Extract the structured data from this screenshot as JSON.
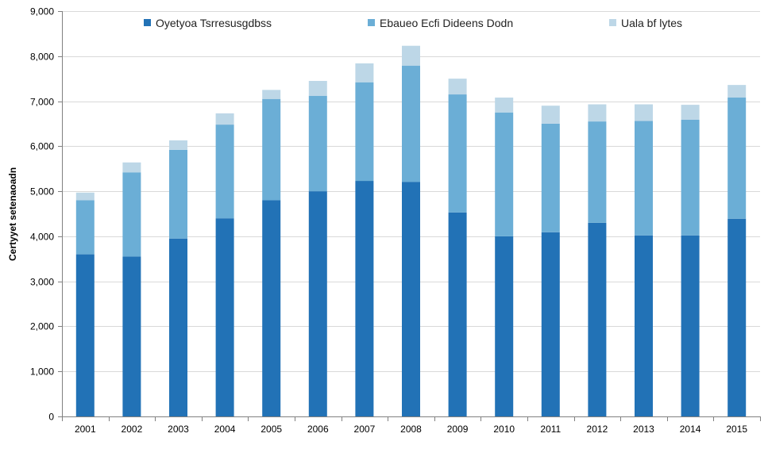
{
  "chart_data": {
    "type": "bar",
    "stacked": true,
    "title": "",
    "xlabel": "",
    "ylabel": "Certyyet setenaoadn",
    "ylim": [
      0,
      9000
    ],
    "yticks": [
      0,
      1000,
      2000,
      3000,
      4000,
      5000,
      6000,
      7000,
      8000,
      9000
    ],
    "ytick_labels": [
      "0",
      "1,000",
      "2,000",
      "3,000",
      "4,000",
      "5,000",
      "6,000",
      "7,000",
      "8,000",
      "9,000"
    ],
    "grid": true,
    "legend_position": "top",
    "categories": [
      "2001",
      "2002",
      "2003",
      "2004",
      "2005",
      "2006",
      "2007",
      "2008",
      "2009",
      "2010",
      "2011",
      "2012",
      "2013",
      "2014",
      "2015"
    ],
    "series": [
      {
        "name": "Oyetyoa Tsrresusgdbss",
        "color": "#2272b6",
        "values": [
          3600,
          3550,
          3950,
          4400,
          4800,
          5000,
          5230,
          5210,
          4530,
          4000,
          4090,
          4300,
          4020,
          4020,
          4390
        ]
      },
      {
        "name": "Ebaueo Ecfi Dideens Dodn",
        "color": "#6baed6",
        "values": [
          1200,
          1870,
          1970,
          2080,
          2250,
          2120,
          2190,
          2580,
          2620,
          2750,
          2410,
          2250,
          2540,
          2570,
          2690
        ]
      },
      {
        "name": "Uala bf lytes",
        "color": "#bdd7e7",
        "values": [
          170,
          220,
          210,
          250,
          200,
          330,
          420,
          440,
          350,
          330,
          400,
          380,
          370,
          330,
          280
        ]
      }
    ]
  }
}
